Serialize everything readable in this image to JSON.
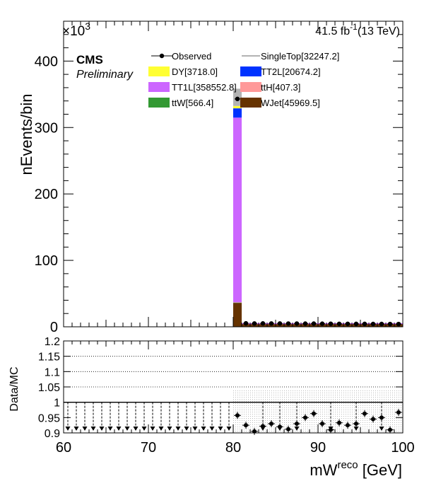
{
  "chart_data": [
    {
      "type": "bar",
      "stacked": true,
      "title": "",
      "xlabel_main": "mW",
      "xlabel_sup": "reco",
      "xlabel_unit": " [GeV]",
      "ylabel": "nEvents/bin",
      "y_multiplier": "×10",
      "y_multiplier_exp": "3",
      "lumi_text": "41.5 fb",
      "lumi_exp": "-1",
      "lumi_energy": "(13 TeV)",
      "cms_label": "CMS",
      "cms_sublabel": "Preliminary",
      "xlim": [
        60,
        100
      ],
      "ylim": [
        0,
        460
      ],
      "x_ticks": [
        "60",
        "70",
        "80",
        "90",
        "100"
      ],
      "y_ticks": [
        "0",
        "100",
        "200",
        "300",
        "400"
      ],
      "x_tick_values": [
        60,
        70,
        80,
        90,
        100
      ],
      "y_tick_values": [
        0,
        100,
        200,
        300,
        400
      ],
      "grid": false,
      "legend_position": "top",
      "legend": [
        {
          "label": "Observed",
          "style": "marker",
          "color": "#000000"
        },
        {
          "label": "SingleTop[32247.2]",
          "style": "line",
          "color": "#b3b3b3"
        },
        {
          "label": "DY[3718.0]",
          "style": "box",
          "color": "#ffff33"
        },
        {
          "label": "TT2L[20674.2]",
          "style": "box",
          "color": "#0033ff"
        },
        {
          "label": "TT1L[358552.8]",
          "style": "box",
          "color": "#cc66ff"
        },
        {
          "label": "ttH[407.3]",
          "style": "box",
          "color": "#ff9999"
        },
        {
          "label": "ttW[566.4]",
          "style": "box",
          "color": "#339933"
        },
        {
          "label": "WJet[45969.5]",
          "style": "box",
          "color": "#663300"
        }
      ],
      "stack_bins": [
        {
          "x0": 80.0,
          "x1": 81.0,
          "wjet": 36,
          "ttw": 0.5,
          "tth": 0.4,
          "tt1l": 278,
          "tt2l": 14,
          "dy": 3.5,
          "singletop": 26
        }
      ],
      "stack_flat": [
        {
          "x0": 81.0,
          "x1": 100.0,
          "total": 5.5,
          "wjet": 4.0
        }
      ],
      "observed_x": [
        80.5,
        81.5,
        82.5,
        83.5,
        84.5,
        85.5,
        86.5,
        87.5,
        88.5,
        89.5,
        90.5,
        91.5,
        92.5,
        93.5,
        94.5,
        95.5,
        96.5,
        97.5,
        98.5,
        99.5
      ],
      "observed_y": [
        343,
        5.2,
        5.0,
        5.1,
        5.0,
        5.0,
        4.9,
        4.9,
        4.8,
        4.8,
        4.7,
        4.6,
        4.5,
        4.5,
        4.4,
        4.4,
        4.3,
        4.3,
        4.2,
        4.2
      ]
    },
    {
      "type": "scatter",
      "xlabel": "",
      "ylabel": "Data/MC",
      "xlim": [
        60,
        100
      ],
      "ylim": [
        0.9,
        1.2
      ],
      "y_ticks": [
        "0.9",
        "0.95",
        "1",
        "1.05",
        "1.1",
        "1.15",
        "1.2"
      ],
      "y_tick_values": [
        0.9,
        0.95,
        1.0,
        1.05,
        1.1,
        1.15,
        1.2
      ],
      "reference_lines": [
        1.0,
        1.05,
        1.1,
        1.15
      ],
      "uncertainty_band": {
        "x0": 80,
        "x1": 100,
        "low": 0.9,
        "high": 1.04
      },
      "underflow_arrows_x": [
        60.5,
        61.5,
        62.5,
        63.5,
        64.5,
        65.5,
        66.5,
        67.5,
        68.5,
        69.5,
        70.5,
        71.5,
        72.5,
        73.5,
        74.5,
        75.5,
        76.5,
        77.5,
        78.5,
        79.5,
        83.5,
        85.5,
        87.5,
        91.5,
        94.5,
        97.5
      ],
      "ratio_x": [
        80.5,
        81.5,
        82.5,
        83.5,
        84.5,
        85.5,
        86.5,
        87.5,
        88.5,
        89.5,
        90.5,
        91.5,
        92.5,
        93.5,
        94.5,
        95.5,
        96.5,
        97.5,
        98.5,
        99.5
      ],
      "ratio_y": [
        0.957,
        0.925,
        0.905,
        0.922,
        0.93,
        0.92,
        0.912,
        0.93,
        0.95,
        0.963,
        0.93,
        0.91,
        0.933,
        0.925,
        0.93,
        0.963,
        0.945,
        0.95,
        0.91,
        0.967
      ]
    }
  ]
}
